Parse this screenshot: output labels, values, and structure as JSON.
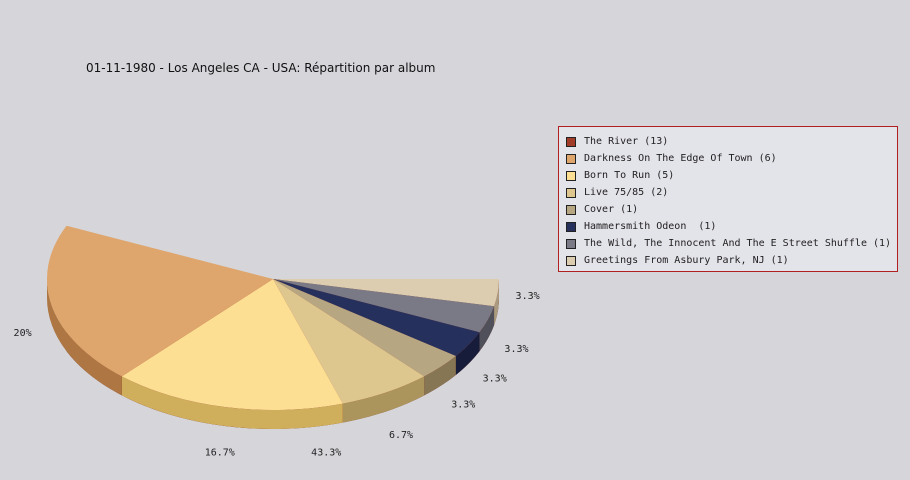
{
  "chart_data": {
    "type": "pie",
    "title": "01-11-1980 - Los Angeles CA - USA:  Répartition par album",
    "legend_position": "right",
    "slices": [
      {
        "label": "The River (13)",
        "value": 13,
        "pct": "43.3%",
        "color": "#a03c28",
        "side": "#6e0d04"
      },
      {
        "label": "Darkness On The Edge Of Town (6)",
        "value": 6,
        "pct": "20%",
        "color": "#dea66c",
        "side": "#ad7642"
      },
      {
        "label": "Born To Run (5)",
        "value": 5,
        "pct": "16.7%",
        "color": "#fddf94",
        "side": "#cfae5c"
      },
      {
        "label": "Live 75/85 (2)",
        "value": 2,
        "pct": "6.7%",
        "color": "#ddc78e",
        "side": "#ab955c"
      },
      {
        "label": "Cover (1)",
        "value": 1,
        "pct": "3.3%",
        "color": "#b7a682",
        "side": "#877654"
      },
      {
        "label": "Hammersmith Odeon  (1)",
        "value": 1,
        "pct": "3.3%",
        "color": "#26305d",
        "side": "#161c3a"
      },
      {
        "label": "The Wild, The Innocent And The E Street Shuffle (1)",
        "value": 1,
        "pct": "3.3%",
        "color": "#7a7a86",
        "side": "#50505a"
      },
      {
        "label": "Greetings From Asbury Park, NJ (1)",
        "value": 1,
        "pct": "3.3%",
        "color": "#dccdb0",
        "side": "#aa9b80"
      }
    ]
  }
}
